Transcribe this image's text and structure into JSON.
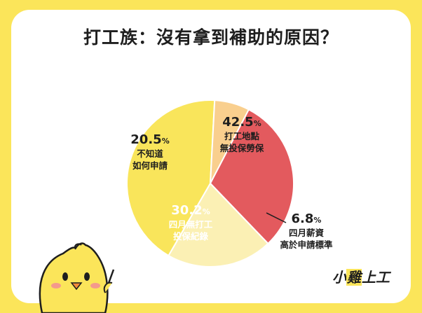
{
  "title": "打工族：沒有拿到補助的原因？",
  "logo_text": [
    "小",
    "雞",
    "上工"
  ],
  "colors": {
    "bg": "#fbe55a",
    "s1": "#f9e55b",
    "s2": "#f9cf8e",
    "s3": "#e35a5e",
    "s4": "#fbf0b4",
    "ink": "#1e1e1e"
  },
  "chart_data": {
    "type": "pie",
    "title": "打工族：沒有拿到補助的原因？",
    "unit": "%",
    "slices": [
      {
        "value": 42.5,
        "label": [
          "打工地點",
          "無投保勞保"
        ],
        "color": "#f9e55b"
      },
      {
        "value": 6.8,
        "label": [
          "四月薪資",
          "高於申請標準"
        ],
        "color": "#f9cf8e"
      },
      {
        "value": 30.2,
        "label": [
          "四月無打工",
          "投保紀錄"
        ],
        "color": "#e35a5e"
      },
      {
        "value": 20.5,
        "label": [
          "不知道",
          "如何申請"
        ],
        "color": "#fbf0b4"
      }
    ]
  }
}
